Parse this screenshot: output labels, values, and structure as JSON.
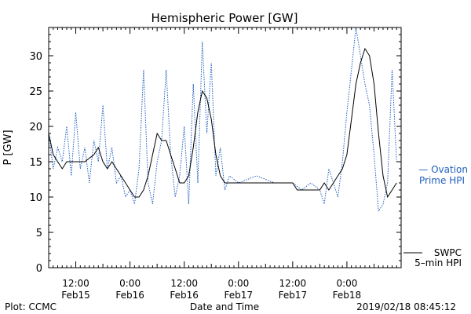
{
  "chart_data": {
    "type": "line",
    "title": "Hemispheric Power [GW]",
    "ylabel": "P [GW]",
    "xlabel": "Date and Time",
    "ylim": [
      0,
      34
    ],
    "yticks": [
      0,
      5,
      10,
      15,
      20,
      25,
      30
    ],
    "xlim": [
      "2019-02-15 06:00",
      "2019-02-18 12:00"
    ],
    "xticks": [
      {
        "t": "2019-02-15 12:00",
        "line1": "12:00",
        "line2": "Feb15"
      },
      {
        "t": "2019-02-16 00:00",
        "line1": "0:00",
        "line2": "Feb16"
      },
      {
        "t": "2019-02-16 12:00",
        "line1": "12:00",
        "line2": "Feb16"
      },
      {
        "t": "2019-02-17 00:00",
        "line1": "0:00",
        "line2": "Feb17"
      },
      {
        "t": "2019-02-17 12:00",
        "line1": "12:00",
        "line2": "Feb17"
      },
      {
        "t": "2019-02-18 00:00",
        "line1": "0:00",
        "line2": "Feb18"
      }
    ],
    "grid": false,
    "series": [
      {
        "name": "Ovation Prime HPI",
        "color": "#1f5fbf",
        "style": "dotted",
        "x": [
          "2019-02-15 06:00",
          "2019-02-15 07:00",
          "2019-02-15 08:00",
          "2019-02-15 09:00",
          "2019-02-15 10:00",
          "2019-02-15 11:00",
          "2019-02-15 12:00",
          "2019-02-15 13:00",
          "2019-02-15 14:00",
          "2019-02-15 15:00",
          "2019-02-15 16:00",
          "2019-02-15 17:00",
          "2019-02-15 18:00",
          "2019-02-15 19:00",
          "2019-02-15 20:00",
          "2019-02-15 21:00",
          "2019-02-15 22:00",
          "2019-02-15 23:00",
          "2019-02-16 00:00",
          "2019-02-16 01:00",
          "2019-02-16 02:00",
          "2019-02-16 03:00",
          "2019-02-16 04:00",
          "2019-02-16 05:00",
          "2019-02-16 06:00",
          "2019-02-16 07:00",
          "2019-02-16 08:00",
          "2019-02-16 09:00",
          "2019-02-16 10:00",
          "2019-02-16 11:00",
          "2019-02-16 12:00",
          "2019-02-16 13:00",
          "2019-02-16 14:00",
          "2019-02-16 15:00",
          "2019-02-16 16:00",
          "2019-02-16 17:00",
          "2019-02-16 18:00",
          "2019-02-16 19:00",
          "2019-02-16 20:00",
          "2019-02-16 21:00",
          "2019-02-16 22:00",
          "2019-02-17 00:00",
          "2019-02-17 04:00",
          "2019-02-17 08:00",
          "2019-02-17 12:00",
          "2019-02-17 14:00",
          "2019-02-17 16:00",
          "2019-02-17 18:00",
          "2019-02-17 19:00",
          "2019-02-17 20:00",
          "2019-02-17 21:00",
          "2019-02-17 22:00",
          "2019-02-17 23:00",
          "2019-02-18 00:00",
          "2019-02-18 01:00",
          "2019-02-18 02:00",
          "2019-02-18 03:00",
          "2019-02-18 04:00",
          "2019-02-18 05:00",
          "2019-02-18 06:00",
          "2019-02-18 07:00",
          "2019-02-18 08:00",
          "2019-02-18 09:00",
          "2019-02-18 10:00",
          "2019-02-18 11:00"
        ],
        "y": [
          19,
          14,
          17,
          15,
          20,
          13,
          22,
          14,
          17,
          12,
          18,
          15,
          23,
          14,
          17,
          12,
          13,
          10,
          11,
          9,
          14,
          28,
          12,
          9,
          15,
          18,
          28,
          16,
          10,
          13,
          20,
          9,
          26,
          12,
          32,
          19,
          29,
          13,
          17,
          11,
          13,
          12,
          13,
          12,
          12,
          11,
          12,
          11,
          9,
          14,
          12,
          10,
          15,
          22,
          28,
          34,
          30,
          26,
          23,
          16,
          8,
          9,
          12,
          28,
          15
        ]
      },
      {
        "name": "SWPC 5-min HPI",
        "color": "#000000",
        "style": "solid",
        "x": [
          "2019-02-15 06:00",
          "2019-02-15 07:00",
          "2019-02-15 08:00",
          "2019-02-15 09:00",
          "2019-02-15 10:00",
          "2019-02-15 12:00",
          "2019-02-15 14:00",
          "2019-02-15 16:00",
          "2019-02-15 17:00",
          "2019-02-15 18:00",
          "2019-02-15 19:00",
          "2019-02-15 20:00",
          "2019-02-15 21:00",
          "2019-02-15 22:00",
          "2019-02-15 23:00",
          "2019-02-16 00:00",
          "2019-02-16 01:00",
          "2019-02-16 02:00",
          "2019-02-16 03:00",
          "2019-02-16 04:00",
          "2019-02-16 05:00",
          "2019-02-16 06:00",
          "2019-02-16 07:00",
          "2019-02-16 08:00",
          "2019-02-16 09:00",
          "2019-02-16 10:00",
          "2019-02-16 11:00",
          "2019-02-16 12:00",
          "2019-02-16 13:00",
          "2019-02-16 14:00",
          "2019-02-16 15:00",
          "2019-02-16 16:00",
          "2019-02-16 17:00",
          "2019-02-16 18:00",
          "2019-02-16 19:00",
          "2019-02-16 20:00",
          "2019-02-16 21:00",
          "2019-02-16 22:00",
          "2019-02-17 00:00",
          "2019-02-17 06:00",
          "2019-02-17 12:00",
          "2019-02-17 13:00",
          "2019-02-17 16:00",
          "2019-02-17 18:00",
          "2019-02-17 19:00",
          "2019-02-17 20:00",
          "2019-02-17 21:00",
          "2019-02-17 22:00",
          "2019-02-17 23:00",
          "2019-02-18 00:00",
          "2019-02-18 01:00",
          "2019-02-18 02:00",
          "2019-02-18 03:00",
          "2019-02-18 04:00",
          "2019-02-18 05:00",
          "2019-02-18 06:00",
          "2019-02-18 07:00",
          "2019-02-18 08:00",
          "2019-02-18 09:00",
          "2019-02-18 10:00",
          "2019-02-18 11:00"
        ],
        "y": [
          19,
          16,
          15,
          14,
          15,
          15,
          15,
          16,
          17,
          15,
          14,
          15,
          14,
          13,
          12,
          11,
          10,
          10,
          11,
          13,
          16,
          19,
          18,
          18,
          16,
          14,
          12,
          12,
          13,
          17,
          22,
          25,
          24,
          21,
          16,
          13,
          12,
          12,
          12,
          12,
          12,
          11,
          11,
          11,
          12,
          11,
          12,
          13,
          14,
          16,
          21,
          26,
          29,
          31,
          30,
          26,
          19,
          13,
          10,
          11,
          12
        ]
      }
    ],
    "legend": [
      {
        "series": "Ovation Prime HPI",
        "line1": "— Ovation",
        "line2": "Prime HPI",
        "position": "right-middle"
      },
      {
        "series": "SWPC 5-min HPI",
        "line1": "SWPC",
        "line2": "5–min HPI",
        "position": "right-bottom"
      }
    ]
  },
  "footer": {
    "left": "Plot: CCMC",
    "center": "Date and Time",
    "right": "2019/02/18 08:45:12"
  }
}
